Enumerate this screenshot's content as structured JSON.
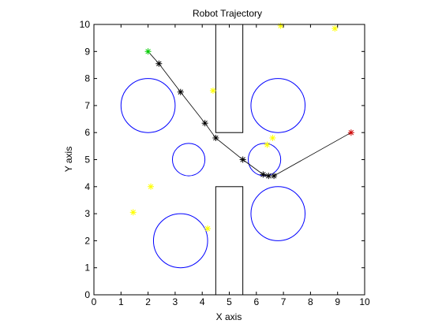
{
  "chart_data": {
    "type": "line",
    "title": "Robot Trajectory",
    "xlabel": "X axis",
    "ylabel": "Y axis",
    "xlim": [
      0,
      10
    ],
    "ylim": [
      0,
      10
    ],
    "xticks": [
      0,
      1,
      2,
      3,
      4,
      5,
      6,
      7,
      8,
      9,
      10
    ],
    "yticks": [
      0,
      1,
      2,
      3,
      4,
      5,
      6,
      7,
      8,
      9,
      10
    ],
    "grid": false,
    "aspect": "equal",
    "obstacles": {
      "rectangles": [
        {
          "x": [
            4.5,
            5.5
          ],
          "y": [
            6,
            10
          ]
        },
        {
          "x": [
            4.5,
            5.5
          ],
          "y": [
            0,
            4
          ]
        }
      ],
      "circles": [
        {
          "cx": 2,
          "cy": 7,
          "r": 1
        },
        {
          "cx": 6.8,
          "cy": 7,
          "r": 1
        },
        {
          "cx": 3.5,
          "cy": 5,
          "r": 0.6
        },
        {
          "cx": 6.3,
          "cy": 5,
          "r": 0.6
        },
        {
          "cx": 3.2,
          "cy": 2,
          "r": 1
        },
        {
          "cx": 6.8,
          "cy": 3,
          "r": 1
        }
      ],
      "color": "#0000ff"
    },
    "path": {
      "points": [
        [
          2.0,
          9.0
        ],
        [
          2.4,
          8.55
        ],
        [
          3.2,
          7.5
        ],
        [
          4.1,
          6.35
        ],
        [
          4.5,
          5.8
        ],
        [
          5.5,
          5.0
        ],
        [
          6.25,
          4.45
        ],
        [
          6.45,
          4.4
        ],
        [
          6.65,
          4.4
        ],
        [
          9.5,
          6.0
        ]
      ],
      "color": "#000000"
    },
    "start": {
      "x": 2.0,
      "y": 9.0,
      "color": "#00cc00"
    },
    "goal": {
      "x": 9.5,
      "y": 6.0,
      "color": "#cc0000"
    },
    "samples": {
      "points": [
        [
          6.9,
          9.95
        ],
        [
          8.9,
          9.85
        ],
        [
          4.4,
          7.55
        ],
        [
          6.6,
          5.8
        ],
        [
          6.4,
          5.55
        ],
        [
          2.1,
          4.0
        ],
        [
          1.45,
          3.05
        ],
        [
          4.2,
          2.45
        ]
      ],
      "color": "#ffff00"
    }
  }
}
